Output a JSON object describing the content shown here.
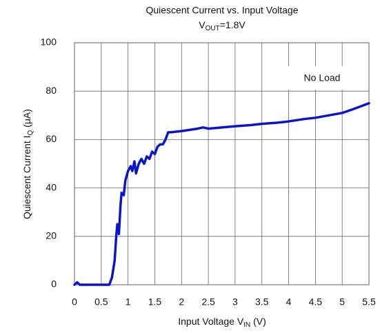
{
  "chart_data": {
    "type": "line",
    "title": "Quiescent Current vs. Input Voltage",
    "subtitle": [
      "V",
      "OUT",
      "=1.8V"
    ],
    "x_label": [
      "Input Voltage V",
      "IN",
      " (V)"
    ],
    "y_label": [
      "Quiescent Current  I",
      "Q",
      " (μA)"
    ],
    "annotation": "No Load",
    "x": [
      0,
      0.05,
      0.1,
      0.65,
      0.7,
      0.75,
      0.78,
      0.8,
      0.83,
      0.86,
      0.88,
      0.92,
      0.95,
      1.0,
      1.05,
      1.08,
      1.12,
      1.15,
      1.2,
      1.25,
      1.3,
      1.35,
      1.4,
      1.45,
      1.5,
      1.55,
      1.6,
      1.65,
      1.7,
      1.75,
      1.8,
      2.0,
      2.3,
      2.4,
      2.5,
      3.0,
      3.3,
      3.5,
      3.8,
      4.0,
      4.3,
      4.5,
      5.0,
      5.2,
      5.5
    ],
    "values": [
      0,
      1,
      0,
      0,
      3,
      10,
      20,
      25,
      21,
      33,
      38,
      37,
      43,
      47,
      49,
      47,
      51,
      46,
      50,
      52,
      50,
      53,
      52,
      55,
      54,
      57,
      58,
      58,
      60,
      63,
      63,
      63.5,
      64.5,
      65,
      64.5,
      65.5,
      66,
      66.5,
      67,
      67.5,
      68.5,
      69,
      71,
      72.5,
      75
    ],
    "color": "#0a14c8",
    "xlim": [
      0,
      5.5
    ],
    "xticks": [
      0,
      0.5,
      1,
      1.5,
      2,
      2.5,
      3,
      3.5,
      4,
      4.5,
      5,
      5.5
    ],
    "ylim": [
      0,
      100
    ],
    "yticks": [
      0,
      20,
      40,
      60,
      80,
      100
    ],
    "grid": true
  }
}
